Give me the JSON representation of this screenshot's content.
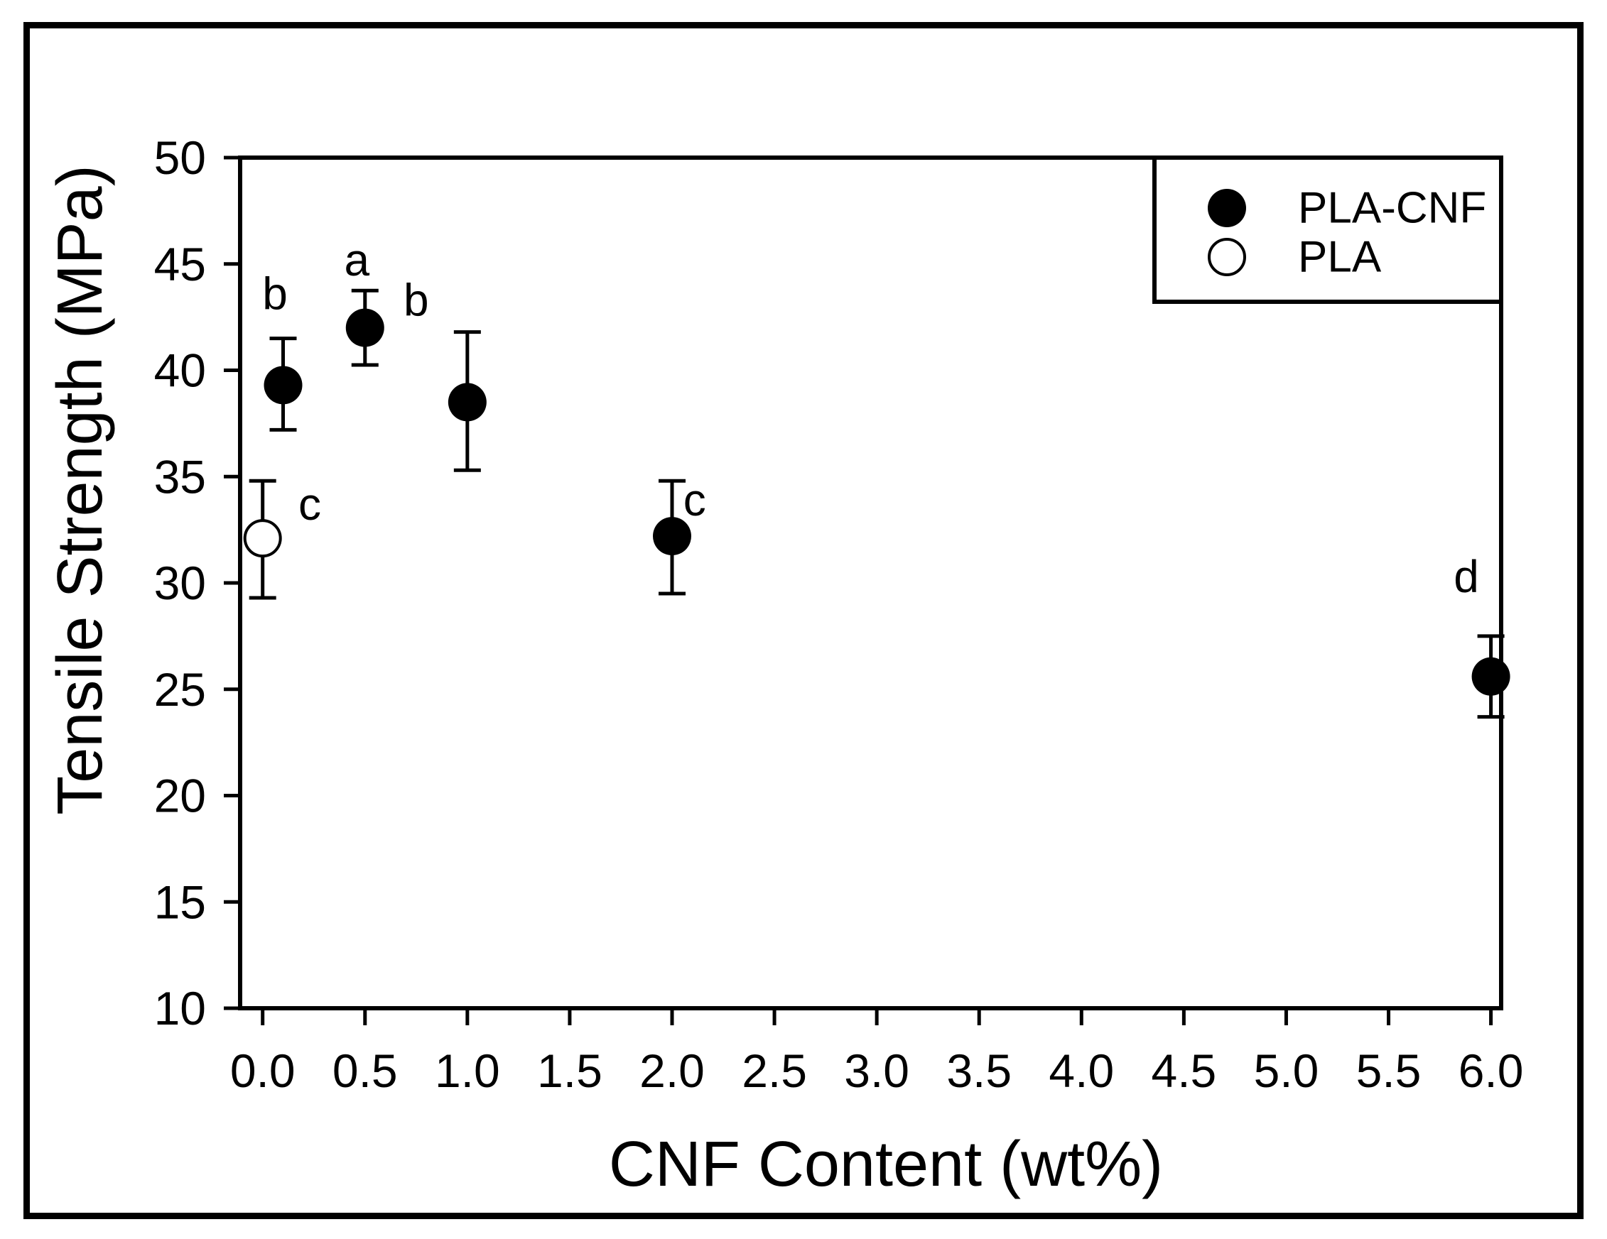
{
  "figure": {
    "background": "#ffffff",
    "border_color": "#000000"
  },
  "chart_data": {
    "type": "scatter",
    "title": "",
    "xlabel": "CNF Content (wt%)",
    "ylabel": "Tensile Strength (MPa)",
    "xlim": [
      -0.11,
      6.05
    ],
    "ylim": [
      10,
      50
    ],
    "grid": false,
    "axis_color": "#000000",
    "background": "#ffffff",
    "x_ticks": [
      {
        "value": 0.0,
        "label": "0.0"
      },
      {
        "value": 0.5,
        "label": "0.5"
      },
      {
        "value": 1.0,
        "label": "1.0"
      },
      {
        "value": 1.5,
        "label": "1.5"
      },
      {
        "value": 2.0,
        "label": "2.0"
      },
      {
        "value": 2.5,
        "label": "2.5"
      },
      {
        "value": 3.0,
        "label": "3.0"
      },
      {
        "value": 3.5,
        "label": "3.5"
      },
      {
        "value": 4.0,
        "label": "4.0"
      },
      {
        "value": 4.5,
        "label": "4.5"
      },
      {
        "value": 5.0,
        "label": "5.0"
      },
      {
        "value": 5.5,
        "label": "5.5"
      },
      {
        "value": 6.0,
        "label": "6.0"
      }
    ],
    "y_ticks": [
      {
        "value": 10,
        "label": "10"
      },
      {
        "value": 15,
        "label": "15"
      },
      {
        "value": 20,
        "label": "20"
      },
      {
        "value": 25,
        "label": "25"
      },
      {
        "value": 30,
        "label": "30"
      },
      {
        "value": 35,
        "label": "35"
      },
      {
        "value": 40,
        "label": "40"
      },
      {
        "value": 45,
        "label": "45"
      },
      {
        "value": 50,
        "label": "50"
      }
    ],
    "legend": {
      "position": "top-right",
      "entries": [
        {
          "label": "PLA-CNF",
          "marker": "filled-circle",
          "color": "#000000"
        },
        {
          "label": "PLA",
          "marker": "open-circle",
          "color": "#000000"
        }
      ]
    },
    "series": [
      {
        "name": "PLA-CNF",
        "marker": "filled-circle",
        "color": "#000000",
        "points": [
          {
            "x": 0.1,
            "y": 39.3,
            "err_plus": 2.2,
            "err_minus": 2.1,
            "annotation": {
              "text": "b",
              "x": 0.06,
              "y": 43.6
            }
          },
          {
            "x": 0.5,
            "y": 42.0,
            "err_plus": 1.75,
            "err_minus": 1.75,
            "annotation": {
              "text": "a",
              "x": 0.46,
              "y": 45.2
            }
          },
          {
            "x": 1.0,
            "y": 38.5,
            "err_plus": 3.3,
            "err_minus": 3.2,
            "annotation": {
              "text": "b",
              "x": 0.75,
              "y": 43.3
            }
          },
          {
            "x": 2.0,
            "y": 32.2,
            "err_plus": 2.6,
            "err_minus": 2.7,
            "annotation": {
              "text": "c",
              "x": 2.11,
              "y": 33.9
            }
          },
          {
            "x": 6.0,
            "y": 25.6,
            "err_plus": 1.9,
            "err_minus": 1.9,
            "annotation": {
              "text": "d",
              "x": 5.88,
              "y": 30.3
            }
          }
        ]
      },
      {
        "name": "PLA",
        "marker": "open-circle",
        "color": "#000000",
        "points": [
          {
            "x": 0.0,
            "y": 32.1,
            "err_plus": 2.7,
            "err_minus": 2.8,
            "annotation": {
              "text": "c",
              "x": 0.23,
              "y": 33.7
            }
          }
        ]
      }
    ]
  }
}
